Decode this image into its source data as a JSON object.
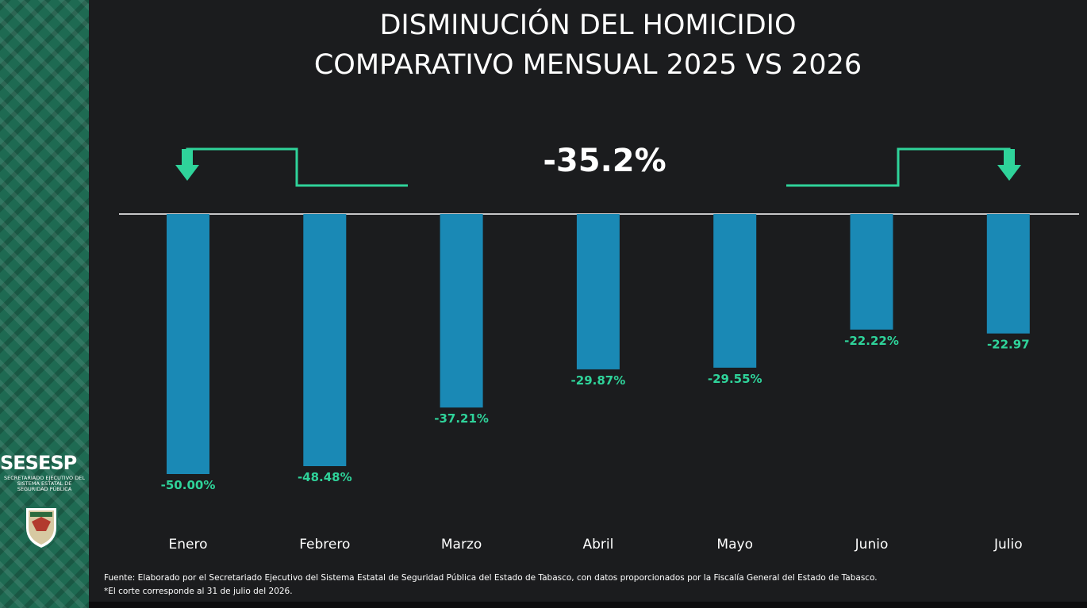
{
  "title_line1": "DISMINUCIÓN DEL HOMICIDIO",
  "title_line2": "COMPARATIVO MENSUAL 2025 VS 2026",
  "overall_change": "-35.2%",
  "footnote_source": "Fuente: Elaborado por el Secretariado Ejecutivo del Sistema Estatal de Seguridad Pública del Estado de Tabasco, con datos proporcionados por la Fiscalía General del Estado de Tabasco.",
  "footnote_cutoff": "*El corte corresponde al 31 de julio del 2026.",
  "logo": {
    "name": "SESESP",
    "subtitle": "SECRETARIADO EJECUTIVO DEL SISTEMA ESTATAL DE SEGURIDAD PÚBLICA"
  },
  "colors": {
    "bar": "#1a89b5",
    "label": "#2fd39a",
    "arrow": "#2fd39a",
    "background": "#1b1c1e",
    "sidebar": "#1e6a52"
  },
  "chart_data": {
    "type": "bar",
    "title": "DISMINUCIÓN DEL HOMICIDIO COMPARATIVO MENSUAL 2025 VS 2026",
    "categories": [
      "Enero",
      "Febrero",
      "Marzo",
      "Abril",
      "Mayo",
      "Junio",
      "Julio"
    ],
    "values": [
      -50.0,
      -48.48,
      -37.21,
      -29.87,
      -29.55,
      -22.22,
      -22.97
    ],
    "data_labels": [
      "-50.00%",
      "-48.48%",
      "-37.21%",
      "-29.87%",
      "-29.55%",
      "-22.22%",
      "-22.97"
    ],
    "ylim": [
      -52,
      0
    ],
    "grid": false,
    "legend": "none",
    "xlabel": "",
    "ylabel": ""
  }
}
